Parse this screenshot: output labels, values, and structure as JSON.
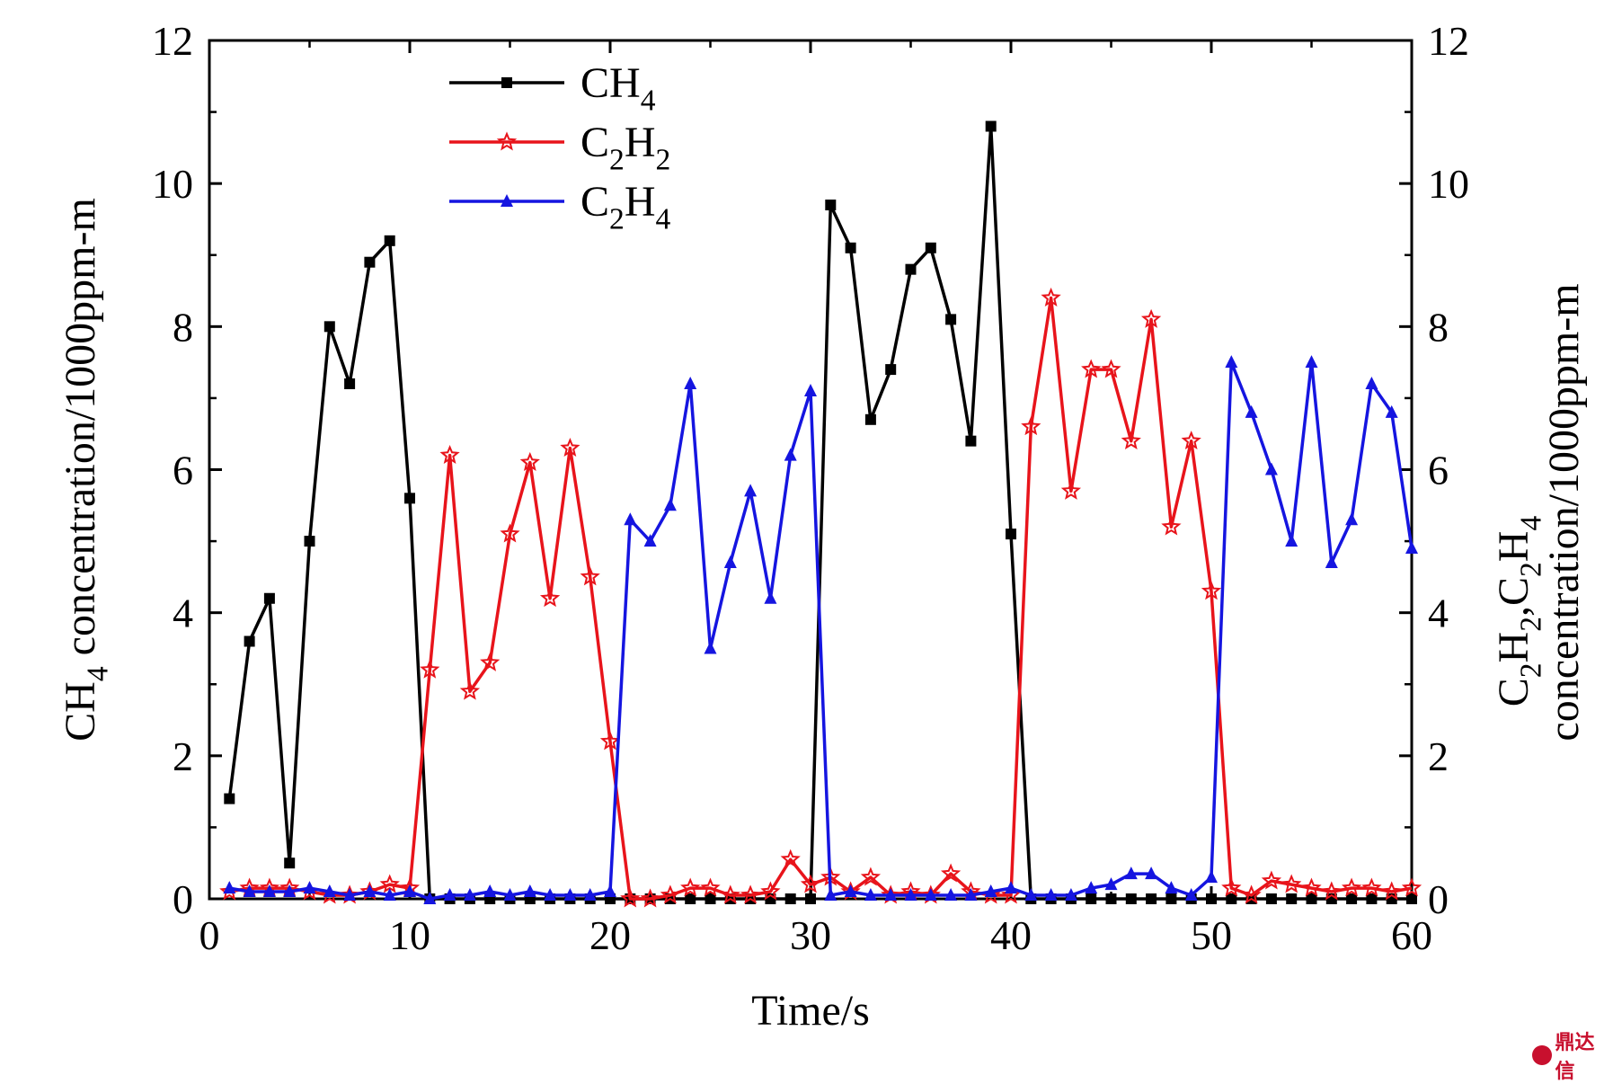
{
  "chart_data": {
    "type": "line",
    "x": [
      1,
      2,
      3,
      4,
      5,
      6,
      7,
      8,
      9,
      10,
      11,
      12,
      13,
      14,
      15,
      16,
      17,
      18,
      19,
      20,
      21,
      22,
      23,
      24,
      25,
      26,
      27,
      28,
      29,
      30,
      31,
      32,
      33,
      34,
      35,
      36,
      37,
      38,
      39,
      40,
      41,
      42,
      43,
      44,
      45,
      46,
      47,
      48,
      49,
      50,
      51,
      52,
      53,
      54,
      55,
      56,
      57,
      58,
      59,
      60
    ],
    "series": [
      {
        "name": "CH4",
        "subscript_label": [
          {
            "t": "CH",
            "sub": false
          },
          {
            "t": "4",
            "sub": true
          }
        ],
        "color": "#000000",
        "marker": "square",
        "axis": "left",
        "values": [
          1.4,
          3.6,
          4.2,
          0.5,
          5.0,
          8.0,
          7.2,
          8.9,
          9.2,
          5.6,
          0,
          0,
          0,
          0,
          0,
          0,
          0,
          0,
          0,
          0,
          0,
          0,
          0,
          0,
          0,
          0,
          0,
          0,
          0,
          0,
          9.7,
          9.1,
          6.7,
          7.4,
          8.8,
          9.1,
          8.1,
          6.4,
          10.8,
          5.1,
          0,
          0,
          0,
          0,
          0,
          0,
          0,
          0,
          0,
          0,
          0,
          0,
          0,
          0,
          0,
          0,
          0,
          0,
          0,
          0
        ]
      },
      {
        "name": "C2H2",
        "subscript_label": [
          {
            "t": "C",
            "sub": false
          },
          {
            "t": "2",
            "sub": true
          },
          {
            "t": "H",
            "sub": false
          },
          {
            "t": "2",
            "sub": true
          }
        ],
        "color": "#e8141b",
        "marker": "star",
        "axis": "right",
        "values": [
          0.1,
          0.15,
          0.15,
          0.15,
          0.1,
          0.05,
          0.05,
          0.1,
          0.2,
          0.15,
          3.2,
          6.2,
          2.9,
          3.3,
          5.1,
          6.1,
          4.2,
          6.3,
          4.5,
          2.2,
          0,
          0,
          0.05,
          0.15,
          0.15,
          0.05,
          0.05,
          0.1,
          0.55,
          0.2,
          0.3,
          0.1,
          0.3,
          0.05,
          0.1,
          0.05,
          0.35,
          0.1,
          0.05,
          0.05,
          6.6,
          8.4,
          5.7,
          7.4,
          7.4,
          6.4,
          8.1,
          5.2,
          6.4,
          4.3,
          0.15,
          0.05,
          0.25,
          0.2,
          0.15,
          0.1,
          0.15,
          0.15,
          0.1,
          0.15
        ]
      },
      {
        "name": "C2H4",
        "subscript_label": [
          {
            "t": "C",
            "sub": false
          },
          {
            "t": "2",
            "sub": true
          },
          {
            "t": "H",
            "sub": false
          },
          {
            "t": "4",
            "sub": true
          }
        ],
        "color": "#1515e0",
        "marker": "triangle",
        "axis": "right",
        "values": [
          0.15,
          0.1,
          0.1,
          0.1,
          0.15,
          0.1,
          0.05,
          0.1,
          0.05,
          0.1,
          0,
          0.05,
          0.05,
          0.1,
          0.05,
          0.1,
          0.05,
          0.05,
          0.05,
          0.1,
          5.3,
          5.0,
          5.5,
          7.2,
          3.5,
          4.7,
          5.7,
          4.2,
          6.2,
          7.1,
          0.05,
          0.1,
          0.05,
          0.05,
          0.05,
          0.05,
          0.05,
          0.05,
          0.1,
          0.15,
          0.05,
          0.05,
          0.05,
          0.15,
          0.2,
          0.35,
          0.35,
          0.15,
          0.05,
          0.3,
          7.5,
          6.8,
          6.0,
          5.0,
          7.5,
          4.7,
          5.3,
          7.2,
          6.8,
          4.9
        ]
      }
    ],
    "xlabel": "Time/s",
    "ylabel_left_parts": [
      {
        "t": "CH",
        "sub": false
      },
      {
        "t": "4",
        "sub": true
      },
      {
        "t": " concentration/1000ppm-m",
        "sub": false
      }
    ],
    "ylabel_right_line1_parts": [
      {
        "t": "C",
        "sub": false
      },
      {
        "t": "2",
        "sub": true
      },
      {
        "t": "H",
        "sub": false
      },
      {
        "t": "2",
        "sub": true
      },
      {
        "t": ",C",
        "sub": false
      },
      {
        "t": "2",
        "sub": true
      },
      {
        "t": "H",
        "sub": false
      },
      {
        "t": "4",
        "sub": true
      }
    ],
    "ylabel_right_line2": "concentration/1000ppm-m",
    "xlim": [
      0,
      60
    ],
    "ylim_left": [
      0,
      12
    ],
    "ylim_right": [
      0,
      12
    ],
    "xticks": [
      0,
      10,
      20,
      30,
      40,
      50,
      60
    ],
    "yticks": [
      0,
      2,
      4,
      6,
      8,
      10,
      12
    ],
    "legend_position": "top-left",
    "grid": false
  },
  "watermark": {
    "text": "鼎达信"
  }
}
